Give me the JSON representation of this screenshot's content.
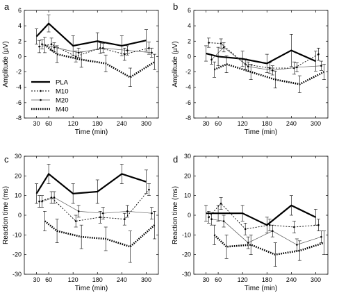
{
  "chart_data": [
    {
      "panel": "a",
      "type": "line",
      "x": [
        30,
        60,
        120,
        180,
        240,
        300
      ],
      "xlabel": "Time (min)",
      "ylabel": "Amplitude (µV)",
      "ylim": [
        -8,
        6
      ],
      "yticks": [
        -8,
        -6,
        -4,
        -2,
        0,
        2,
        4,
        6
      ],
      "xlim": [
        0,
        330
      ],
      "xticks": [
        30,
        60,
        120,
        180,
        240,
        300
      ],
      "legend": "top-left-inside",
      "series": [
        {
          "name": "PLA",
          "values": [
            2.6,
            4.3,
            1.4,
            2.0,
            1.4,
            2.1
          ],
          "err": [
            1.0,
            1.1,
            1.3,
            1.1,
            1.3,
            1.4
          ]
        },
        {
          "name": "M10",
          "values": [
            1.3,
            1.6,
            0.0,
            1.1,
            0.3,
            1.1
          ],
          "err": [
            0.8,
            0.8,
            0.7,
            0.7,
            0.8,
            0.8
          ]
        },
        {
          "name": "M20",
          "values": [
            1.6,
            1.2,
            0.5,
            1.1,
            0.8,
            0.5
          ],
          "err": [
            0.6,
            0.6,
            0.6,
            0.6,
            0.6,
            0.6
          ]
        },
        {
          "name": "M40",
          "values": [
            1.5,
            0.3,
            -0.4,
            -0.9,
            -2.7,
            -0.7
          ],
          "err": [
            1.0,
            1.1,
            1.0,
            1.1,
            1.2,
            1.0
          ]
        }
      ]
    },
    {
      "panel": "b",
      "type": "line",
      "x": [
        30,
        60,
        120,
        180,
        240,
        300
      ],
      "xlabel": "Time (min)",
      "ylabel": "Amplitude (µV)",
      "ylim": [
        -8,
        6
      ],
      "yticks": [
        -8,
        -6,
        -4,
        -2,
        0,
        2,
        4,
        6
      ],
      "xlim": [
        0,
        330
      ],
      "xticks": [
        30,
        60,
        120,
        180,
        240,
        300
      ],
      "series": [
        {
          "name": "PLA",
          "values": [
            0.4,
            0.0,
            -0.3,
            -0.9,
            0.8,
            -0.6
          ],
          "err": [
            1.0,
            1.2,
            1.0,
            1.2,
            2.1,
            1.3
          ]
        },
        {
          "name": "M10",
          "values": [
            1.8,
            1.7,
            -1.0,
            -1.5,
            -1.5,
            0.3
          ],
          "err": [
            0.6,
            0.6,
            0.7,
            0.7,
            0.8,
            0.8
          ]
        },
        {
          "name": "M20",
          "values": [
            -0.4,
            1.2,
            -1.3,
            -1.8,
            -1.4,
            -1.2
          ],
          "err": [
            0.6,
            0.6,
            0.6,
            0.6,
            0.6,
            0.6
          ]
        },
        {
          "name": "M40",
          "values": [
            -1.7,
            -1.0,
            -2.0,
            -3.0,
            -3.6,
            -2.0
          ],
          "err": [
            1.0,
            1.1,
            1.0,
            1.1,
            1.1,
            1.0
          ]
        }
      ]
    },
    {
      "panel": "c",
      "type": "line",
      "x": [
        30,
        60,
        120,
        180,
        240,
        300
      ],
      "xlabel": "Time (min)",
      "ylabel": "Reaction time (ms)",
      "ylim": [
        -30,
        30
      ],
      "yticks": [
        -30,
        -20,
        -10,
        0,
        10,
        20,
        30
      ],
      "xlim": [
        0,
        330
      ],
      "xticks": [
        30,
        60,
        120,
        180,
        240,
        300
      ],
      "series": [
        {
          "name": "PLA",
          "values": [
            11,
            21,
            11,
            12,
            21,
            17
          ],
          "err": [
            5,
            5,
            5,
            6,
            5,
            6
          ]
        },
        {
          "name": "M10",
          "values": [
            7,
            9,
            -3,
            -1,
            -2,
            13
          ],
          "err": [
            3,
            3,
            3,
            3,
            3,
            3
          ]
        },
        {
          "name": "M20",
          "values": [
            7,
            9,
            2,
            1,
            2,
            1
          ],
          "err": [
            3,
            3,
            3,
            3,
            3,
            3
          ]
        },
        {
          "name": "M40",
          "values": [
            -3,
            -8,
            -11,
            -12,
            -16,
            -5
          ],
          "err": [
            5,
            6,
            6,
            6,
            8,
            7
          ]
        }
      ]
    },
    {
      "panel": "d",
      "type": "line",
      "x": [
        30,
        60,
        120,
        180,
        240,
        300
      ],
      "xlabel": "Time (min)",
      "ylabel": "Reaction time (ms)",
      "ylim": [
        -30,
        30
      ],
      "yticks": [
        -30,
        -20,
        -10,
        0,
        10,
        20,
        30
      ],
      "xlim": [
        0,
        330
      ],
      "xticks": [
        30,
        60,
        120,
        180,
        240,
        300
      ],
      "series": [
        {
          "name": "PLA",
          "values": [
            1,
            1,
            1,
            -5,
            5,
            -1
          ],
          "err": [
            4,
            4,
            4,
            4,
            5,
            4
          ]
        },
        {
          "name": "M10",
          "values": [
            -1,
            6,
            -7,
            -5,
            -6,
            -5
          ],
          "err": [
            3,
            3,
            3,
            3,
            3,
            3
          ]
        },
        {
          "name": "M20",
          "values": [
            -2,
            -3,
            -14,
            -8,
            -15,
            -11
          ],
          "err": [
            3,
            3,
            3,
            3,
            3,
            3
          ]
        },
        {
          "name": "M40",
          "values": [
            -10,
            -16,
            -15,
            -20,
            -18,
            -14
          ],
          "err": [
            5,
            6,
            5,
            6,
            5,
            6
          ]
        }
      ]
    }
  ]
}
